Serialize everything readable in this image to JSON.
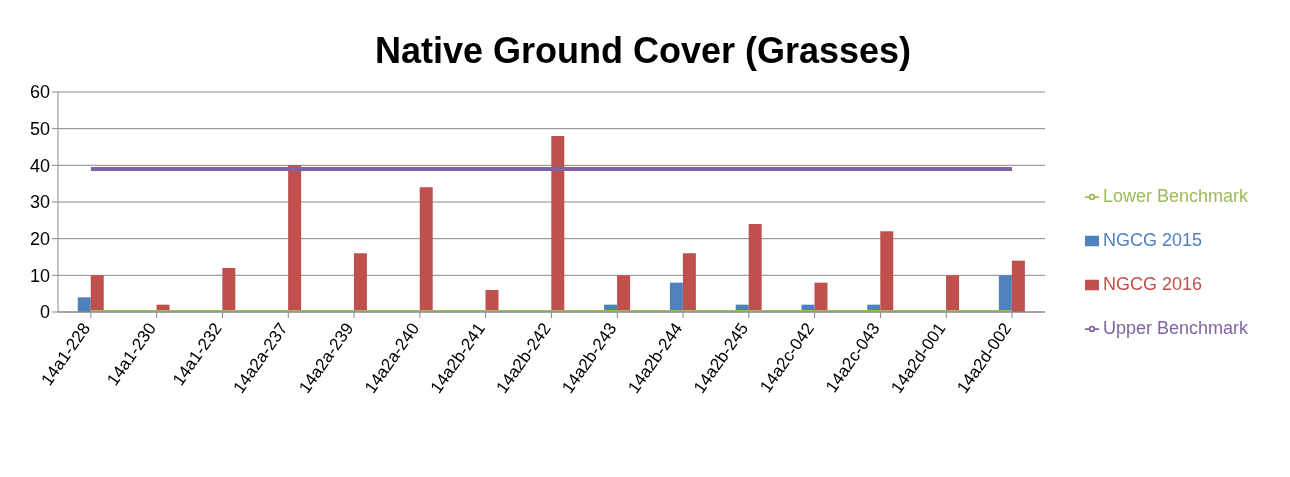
{
  "chart_data": {
    "type": "bar",
    "title": "Native Ground Cover (Grasses)",
    "categories": [
      "14a1-228",
      "14a1-230",
      "14a1-232",
      "14a2a-237",
      "14a2a-239",
      "14a2a-240",
      "14a2b-241",
      "14a2b-242",
      "14a2b-243",
      "14a2b-244",
      "14a2b-245",
      "14a2c-042",
      "14a2c-043",
      "14a2d-001",
      "14a2d-002"
    ],
    "series": [
      {
        "name": "NGCG 2015",
        "color": "#4f81bd",
        "values": [
          4,
          0,
          0,
          0,
          0,
          0,
          0,
          0,
          2,
          8,
          2,
          2,
          2,
          0,
          10
        ]
      },
      {
        "name": "NGCG 2016",
        "color": "#c0504d",
        "values": [
          10,
          2,
          12,
          40,
          16,
          34,
          6,
          48,
          10,
          16,
          24,
          8,
          22,
          10,
          14
        ]
      },
      {
        "name": "Lower Benchmark",
        "type": "line",
        "color": "#9bbb59",
        "values": [
          0,
          0,
          0,
          0,
          0,
          0,
          0,
          0,
          0,
          0,
          0,
          0,
          0,
          0,
          0
        ]
      },
      {
        "name": "Upper Benchmark",
        "type": "line",
        "color": "#8064a2",
        "values": [
          39,
          39,
          39,
          39,
          39,
          39,
          39,
          39,
          39,
          39,
          39,
          39,
          39,
          39,
          39
        ]
      }
    ],
    "ylim": [
      0,
      60
    ],
    "yticks": [
      0,
      10,
      20,
      30,
      40,
      50,
      60
    ],
    "grid": "y",
    "legend": "right",
    "marker": "none",
    "line_style": "solid"
  }
}
